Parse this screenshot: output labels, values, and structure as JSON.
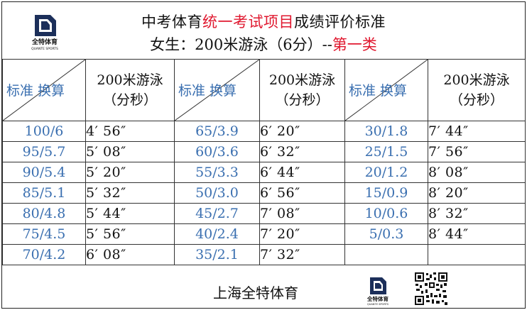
{
  "header": {
    "title_part1": "中考体育",
    "title_highlight": "统一考试项目",
    "title_part2": "成绩评价标准",
    "subtitle_main": "女生：200米游泳（6分）--",
    "subtitle_highlight": "第一类",
    "logo_text": "全特体育",
    "logo_subtext": "QUANTE SPORTS"
  },
  "colors": {
    "accent_red": "#e0182f",
    "standard_blue": "#3a6fb0"
  },
  "table": {
    "diag_label": "标准  换算",
    "col_head_line1": "200米游泳",
    "col_head_line2": "（分秒）",
    "rows": [
      {
        "s1": "100/6",
        "t1": "4′ 56″",
        "s2": "65/3.9",
        "t2": "6′ 20″",
        "s3": "30/1.8",
        "t3": "7′ 44″"
      },
      {
        "s1": "95/5.7",
        "t1": "5′ 08″",
        "s2": "60/3.6",
        "t2": "6′ 32″",
        "s3": "25/1.5",
        "t3": "7′ 56″"
      },
      {
        "s1": "90/5.4",
        "t1": "5′ 20″",
        "s2": "55/3.3",
        "t2": "6′ 44″",
        "s3": "20/1.2",
        "t3": "8′ 08″"
      },
      {
        "s1": "85/5.1",
        "t1": "5′ 32″",
        "s2": "50/3.0",
        "t2": "6′ 56″",
        "s3": "15/0.9",
        "t3": "8′ 20″"
      },
      {
        "s1": "80/4.8",
        "t1": "5′ 44″",
        "s2": "45/2.7",
        "t2": "7′ 08″",
        "s3": "10/0.6",
        "t3": "8′ 32″"
      },
      {
        "s1": "75/4.5",
        "t1": "5′ 56″",
        "s2": "40/2.4",
        "t2": "7′ 20″",
        "s3": "5/0.3",
        "t3": "8′ 44″"
      },
      {
        "s1": "70/4.2",
        "t1": "6′ 08″",
        "s2": "35/2.1",
        "t2": "7′ 32″",
        "s3": "",
        "t3": ""
      }
    ]
  },
  "footer": {
    "org_name": "上海全特体育"
  }
}
